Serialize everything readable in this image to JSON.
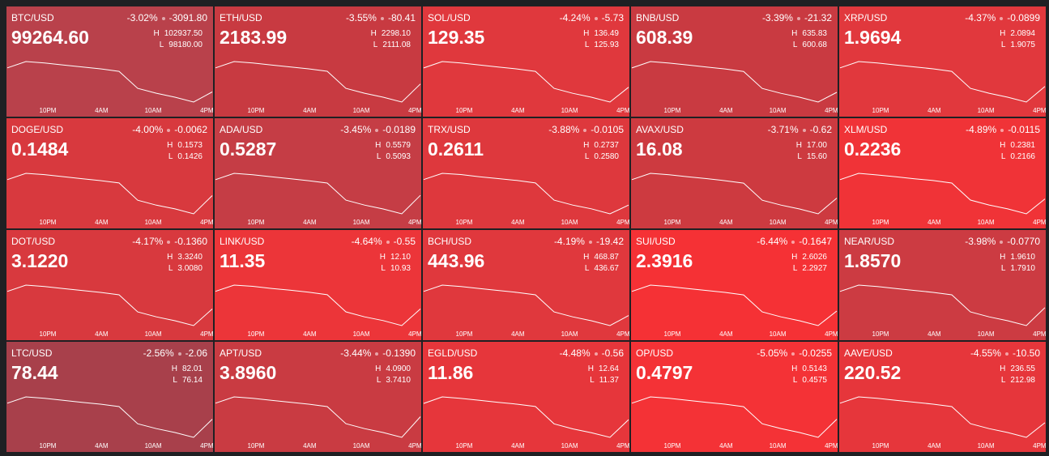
{
  "high_label": "H",
  "low_label": "L",
  "time_labels": [
    "10PM",
    "4AM",
    "10AM",
    "4PM"
  ],
  "tiles": [
    {
      "symbol": "BTC/USD",
      "price": "99264.60",
      "change_pct": "-3.02%",
      "change": "-3091.80",
      "high": "102937.50",
      "low": "98180.00",
      "color": "#b9414b",
      "spark": [
        101605,
        102224,
        102081,
        101891,
        101701,
        101510,
        101272,
        99607,
        99132,
        98751,
        98275,
        99264.6
      ]
    },
    {
      "symbol": "ETH/USD",
      "price": "2183.99",
      "change_pct": "-3.55%",
      "change": "-80.41",
      "high": "2298.10",
      "low": "2111.08",
      "color": "#c83a41",
      "spark": [
        2245.7,
        2270.0,
        2264.4,
        2257.0,
        2249.5,
        2242.0,
        2232.6,
        2167.2,
        2148.5,
        2133.5,
        2114.8,
        2183.99
      ]
    },
    {
      "symbol": "SOL/USD",
      "price": "129.35",
      "change_pct": "-4.24%",
      "change": "-5.73",
      "high": "136.49",
      "low": "125.93",
      "color": "#e0383d",
      "spark": [
        133.53,
        134.91,
        134.59,
        134.17,
        133.74,
        133.32,
        132.79,
        129.1,
        128.04,
        127.2,
        126.14,
        129.35
      ]
    },
    {
      "symbol": "BNB/USD",
      "price": "608.39",
      "change_pct": "-3.39%",
      "change": "-21.32",
      "high": "635.83",
      "low": "600.68",
      "color": "#c93a41",
      "spark": [
        626.0,
        630.6,
        629.5,
        628.1,
        626.7,
        625.3,
        623.5,
        611.2,
        607.7,
        604.9,
        601.4,
        608.39
      ]
    },
    {
      "symbol": "XRP/USD",
      "price": "1.9694",
      "change_pct": "-4.37%",
      "change": "-0.0899",
      "high": "2.0894",
      "low": "1.9075",
      "color": "#e1383d",
      "spark": [
        2.0385,
        2.0621,
        2.0567,
        2.0494,
        2.0421,
        2.0348,
        2.0257,
        1.9621,
        1.9439,
        1.9293,
        1.9111,
        1.9694
      ]
    },
    {
      "symbol": "DOGE/USD",
      "price": "0.1484",
      "change_pct": "-4.00%",
      "change": "-0.0062",
      "high": "0.1573",
      "low": "0.1426",
      "color": "#d8393e",
      "spark": [
        0.1532,
        0.1551,
        0.1547,
        0.1541,
        0.1535,
        0.1529,
        0.1522,
        0.147,
        0.1455,
        0.1444,
        0.1429,
        0.1484
      ]
    },
    {
      "symbol": "ADA/USD",
      "price": "0.5287",
      "change_pct": "-3.45%",
      "change": "-0.0189",
      "high": "0.5579",
      "low": "0.5093",
      "color": "#c53d45",
      "spark": [
        0.5443,
        0.5506,
        0.5492,
        0.5472,
        0.5453,
        0.5433,
        0.5409,
        0.5239,
        0.519,
        0.5151,
        0.5103,
        0.5287
      ]
    },
    {
      "symbol": "TRX/USD",
      "price": "0.2611",
      "change_pct": "-3.88%",
      "change": "-0.0105",
      "high": "0.2737",
      "low": "0.2580",
      "color": "#de383d",
      "spark": [
        0.2693,
        0.2713,
        0.2709,
        0.2702,
        0.2696,
        0.269,
        0.2682,
        0.2627,
        0.2611,
        0.2599,
        0.2583,
        0.2611
      ]
    },
    {
      "symbol": "AVAX/USD",
      "price": "16.08",
      "change_pct": "-3.71%",
      "change": "-0.62",
      "high": "17.00",
      "low": "15.60",
      "color": "#cd3a40",
      "spark": [
        16.61,
        16.79,
        16.75,
        16.69,
        16.64,
        16.58,
        16.51,
        16.02,
        15.88,
        15.77,
        15.63,
        16.08
      ]
    },
    {
      "symbol": "XLM/USD",
      "price": "0.2236",
      "change_pct": "-4.89%",
      "change": "-0.0115",
      "high": "0.2381",
      "low": "0.2166",
      "color": "#f03337",
      "spark": [
        0.2321,
        0.2349,
        0.2342,
        0.2334,
        0.2325,
        0.2317,
        0.2306,
        0.2231,
        0.2209,
        0.2192,
        0.217,
        0.2236
      ]
    },
    {
      "symbol": "DOT/USD",
      "price": "3.1220",
      "change_pct": "-4.17%",
      "change": "-0.1360",
      "high": "3.3240",
      "low": "3.0080",
      "color": "#d8393e",
      "spark": [
        3.2355,
        3.2766,
        3.2671,
        3.2545,
        3.2418,
        3.2292,
        3.2134,
        3.1028,
        3.0712,
        3.0459,
        3.0143,
        3.122
      ]
    },
    {
      "symbol": "LINK/USD",
      "price": "11.35",
      "change_pct": "-4.64%",
      "change": "-0.55",
      "high": "12.10",
      "low": "10.93",
      "color": "#ec3539",
      "spark": [
        11.77,
        11.92,
        11.89,
        11.84,
        11.8,
        11.75,
        11.69,
        11.28,
        11.16,
        11.07,
        10.95,
        11.35
      ]
    },
    {
      "symbol": "BCH/USD",
      "price": "443.96",
      "change_pct": "-4.19%",
      "change": "-19.42",
      "high": "468.87",
      "low": "436.67",
      "color": "#e0383d",
      "spark": [
        459.85,
        464.04,
        463.07,
        461.79,
        460.5,
        459.21,
        457.6,
        446.33,
        443.11,
        440.53,
        437.31,
        443.96
      ]
    },
    {
      "symbol": "SUI/USD",
      "price": "2.3916",
      "change_pct": "-6.44%",
      "change": "-0.1647",
      "high": "2.6026",
      "low": "2.2927",
      "color": "#f53135",
      "spark": [
        2.5158,
        2.5561,
        2.5468,
        2.5344,
        2.522,
        2.5096,
        2.4941,
        2.3857,
        2.3547,
        2.3299,
        2.2989,
        2.3916
      ]
    },
    {
      "symbol": "NEAR/USD",
      "price": "1.8570",
      "change_pct": "-3.98%",
      "change": "-0.0770",
      "high": "1.9610",
      "low": "1.7910",
      "color": "#cc3b42",
      "spark": [
        1.9134,
        1.9355,
        1.9304,
        1.9236,
        1.9168,
        1.91,
        1.9015,
        1.842,
        1.825,
        1.8114,
        1.7944,
        1.857
      ]
    },
    {
      "symbol": "LTC/USD",
      "price": "78.44",
      "change_pct": "-2.56%",
      "change": "-2.06",
      "high": "82.01",
      "low": "76.14",
      "color": "#a8404b",
      "spark": [
        80.37,
        81.13,
        80.95,
        80.72,
        80.48,
        80.25,
        79.96,
        77.9,
        77.31,
        76.84,
        76.26,
        78.44
      ]
    },
    {
      "symbol": "APT/USD",
      "price": "3.8960",
      "change_pct": "-3.44%",
      "change": "-0.1390",
      "high": "4.0900",
      "low": "3.7410",
      "color": "#c93b42",
      "spark": [
        3.9923,
        4.0377,
        4.0272,
        4.0132,
        3.9993,
        3.9853,
        3.9679,
        3.8457,
        3.8108,
        3.7829,
        3.748,
        3.896
      ]
    },
    {
      "symbol": "EGLD/USD",
      "price": "11.86",
      "change_pct": "-4.48%",
      "change": "-0.56",
      "high": "12.64",
      "low": "11.37",
      "color": "#e6363b",
      "spark": [
        12.28,
        12.45,
        12.41,
        12.36,
        12.31,
        12.26,
        12.2,
        11.75,
        11.62,
        11.52,
        11.4,
        11.86
      ]
    },
    {
      "symbol": "OP/USD",
      "price": "0.4797",
      "change_pct": "-5.05%",
      "change": "-0.0255",
      "high": "0.5143",
      "low": "0.4575",
      "color": "#f43236",
      "spark": [
        0.4984,
        0.5058,
        0.5041,
        0.5018,
        0.4995,
        0.4973,
        0.4944,
        0.4745,
        0.4689,
        0.4643,
        0.4586,
        0.4797
      ]
    },
    {
      "symbol": "AAVE/USD",
      "price": "220.52",
      "change_pct": "-4.55%",
      "change": "-10.50",
      "high": "236.55",
      "low": "212.98",
      "color": "#e6363b",
      "spark": [
        229.95,
        233.01,
        232.31,
        231.36,
        230.42,
        229.48,
        228.3,
        220.05,
        217.69,
        215.81,
        213.45,
        220.52
      ]
    }
  ]
}
